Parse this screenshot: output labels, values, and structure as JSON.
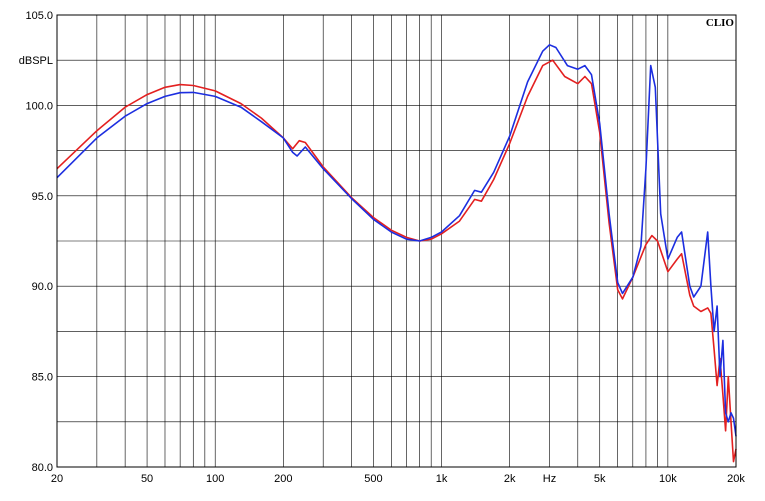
{
  "chart_data": {
    "type": "line",
    "brand": "CLIO",
    "ylabel": "dBSPL",
    "xlabel": "Hz",
    "x_scale": "log",
    "xlim": [
      20,
      20000
    ],
    "ylim": [
      80,
      105
    ],
    "grid": true,
    "y_ticks": [
      {
        "value": 105,
        "label": "105.0"
      },
      {
        "value": 100,
        "label": "100.0"
      },
      {
        "value": 95,
        "label": "95.0"
      },
      {
        "value": 90,
        "label": "90.0"
      },
      {
        "value": 85,
        "label": "85.0"
      },
      {
        "value": 80,
        "label": "80.0"
      }
    ],
    "x_ticks": [
      {
        "value": 20,
        "label": "20"
      },
      {
        "value": 50,
        "label": "50"
      },
      {
        "value": 100,
        "label": "100"
      },
      {
        "value": 200,
        "label": "200"
      },
      {
        "value": 500,
        "label": "500"
      },
      {
        "value": 1000,
        "label": "1k"
      },
      {
        "value": 2000,
        "label": "2k"
      },
      {
        "value": 5000,
        "label": "5k"
      },
      {
        "value": 10000,
        "label": "10k"
      },
      {
        "value": 20000,
        "label": "20k"
      }
    ],
    "series": [
      {
        "color": "#e32020",
        "points": [
          [
            20,
            96.5
          ],
          [
            30,
            98.6
          ],
          [
            40,
            99.9
          ],
          [
            50,
            100.6
          ],
          [
            60,
            101.0
          ],
          [
            70,
            101.15
          ],
          [
            80,
            101.1
          ],
          [
            100,
            100.8
          ],
          [
            130,
            100.1
          ],
          [
            160,
            99.3
          ],
          [
            200,
            98.2
          ],
          [
            220,
            97.6
          ],
          [
            235,
            98.05
          ],
          [
            250,
            97.95
          ],
          [
            300,
            96.6
          ],
          [
            400,
            94.9
          ],
          [
            500,
            93.8
          ],
          [
            600,
            93.1
          ],
          [
            700,
            92.7
          ],
          [
            800,
            92.5
          ],
          [
            900,
            92.6
          ],
          [
            1000,
            92.9
          ],
          [
            1200,
            93.6
          ],
          [
            1400,
            94.8
          ],
          [
            1500,
            94.7
          ],
          [
            1700,
            95.9
          ],
          [
            2000,
            97.9
          ],
          [
            2400,
            100.5
          ],
          [
            2800,
            102.2
          ],
          [
            3100,
            102.5
          ],
          [
            3500,
            101.6
          ],
          [
            4000,
            101.2
          ],
          [
            4300,
            101.6
          ],
          [
            4600,
            101.2
          ],
          [
            5000,
            98.5
          ],
          [
            5500,
            93.5
          ],
          [
            6000,
            89.8
          ],
          [
            6300,
            89.3
          ],
          [
            7000,
            90.5
          ],
          [
            8000,
            92.3
          ],
          [
            8500,
            92.8
          ],
          [
            9000,
            92.5
          ],
          [
            10000,
            90.8
          ],
          [
            11000,
            91.5
          ],
          [
            11500,
            91.8
          ],
          [
            12500,
            89.5
          ],
          [
            13000,
            88.9
          ],
          [
            14000,
            88.6
          ],
          [
            15000,
            88.8
          ],
          [
            15500,
            88.5
          ],
          [
            16000,
            86.5
          ],
          [
            16500,
            84.5
          ],
          [
            17000,
            86.0
          ],
          [
            17500,
            84.0
          ],
          [
            18000,
            82.0
          ],
          [
            18500,
            85.0
          ],
          [
            19000,
            82.5
          ],
          [
            19500,
            80.3
          ],
          [
            20000,
            81.0
          ]
        ]
      },
      {
        "color": "#1c2ee0",
        "points": [
          [
            20,
            96.0
          ],
          [
            30,
            98.2
          ],
          [
            40,
            99.4
          ],
          [
            50,
            100.1
          ],
          [
            60,
            100.5
          ],
          [
            70,
            100.7
          ],
          [
            80,
            100.72
          ],
          [
            100,
            100.5
          ],
          [
            130,
            99.9
          ],
          [
            160,
            99.1
          ],
          [
            200,
            98.2
          ],
          [
            220,
            97.4
          ],
          [
            230,
            97.2
          ],
          [
            250,
            97.7
          ],
          [
            300,
            96.5
          ],
          [
            400,
            94.85
          ],
          [
            500,
            93.7
          ],
          [
            600,
            93.0
          ],
          [
            700,
            92.6
          ],
          [
            800,
            92.5
          ],
          [
            900,
            92.7
          ],
          [
            1000,
            93.0
          ],
          [
            1200,
            93.9
          ],
          [
            1400,
            95.3
          ],
          [
            1500,
            95.2
          ],
          [
            1700,
            96.3
          ],
          [
            2000,
            98.3
          ],
          [
            2400,
            101.3
          ],
          [
            2800,
            103.0
          ],
          [
            3000,
            103.35
          ],
          [
            3200,
            103.2
          ],
          [
            3600,
            102.2
          ],
          [
            4000,
            102.0
          ],
          [
            4300,
            102.2
          ],
          [
            4600,
            101.7
          ],
          [
            5000,
            99.0
          ],
          [
            5500,
            94.0
          ],
          [
            6000,
            90.2
          ],
          [
            6300,
            89.6
          ],
          [
            7000,
            90.5
          ],
          [
            7600,
            92.2
          ],
          [
            8000,
            96.5
          ],
          [
            8400,
            102.2
          ],
          [
            8800,
            101.0
          ],
          [
            9300,
            94.0
          ],
          [
            10000,
            91.5
          ],
          [
            11000,
            92.7
          ],
          [
            11500,
            93.0
          ],
          [
            12500,
            90.0
          ],
          [
            13000,
            89.4
          ],
          [
            14000,
            90.0
          ],
          [
            15000,
            93.0
          ],
          [
            15500,
            90.0
          ],
          [
            16000,
            87.5
          ],
          [
            16500,
            88.9
          ],
          [
            17000,
            85.0
          ],
          [
            17500,
            87.0
          ],
          [
            18000,
            83.0
          ],
          [
            18500,
            82.5
          ],
          [
            19000,
            83.0
          ],
          [
            19500,
            82.7
          ],
          [
            20000,
            81.7
          ]
        ]
      }
    ]
  }
}
